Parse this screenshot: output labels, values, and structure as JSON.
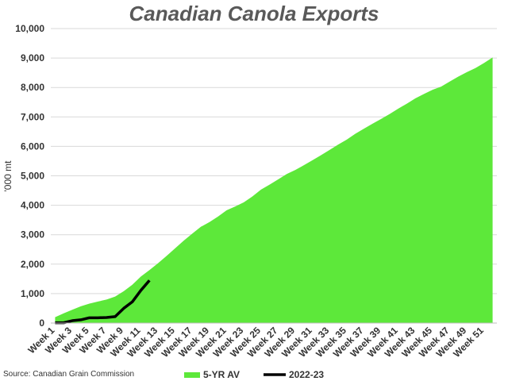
{
  "chart_data": {
    "type": "area-line",
    "title": "Canadian Canola Exports",
    "y_label": "'000 mt",
    "source": "Source: Canadian Grain Commission",
    "categories": [
      "Week 1",
      null,
      "Week 3",
      null,
      "Week 5",
      null,
      "Week 7",
      null,
      "Week 9",
      null,
      "Week 11",
      null,
      "Week 13",
      null,
      "Week 15",
      null,
      "Week 17",
      null,
      "Week 19",
      null,
      "Week 21",
      null,
      "Week 23",
      null,
      "Week 25",
      null,
      "Week 27",
      null,
      "Week 29",
      null,
      "Week 31",
      null,
      "Week 33",
      null,
      "Week 35",
      null,
      "Week 37",
      null,
      "Week 39",
      null,
      "Week 41",
      null,
      "Week 43",
      null,
      "Week 45",
      null,
      "Week 47",
      null,
      "Week 49",
      null,
      "Week 51",
      null
    ],
    "series": [
      {
        "name": "5-YR AV",
        "kind": "area",
        "color": "#5de83a",
        "values": [
          200,
          330,
          450,
          570,
          660,
          730,
          800,
          900,
          1080,
          1300,
          1580,
          1800,
          2030,
          2280,
          2540,
          2800,
          3040,
          3270,
          3430,
          3620,
          3830,
          3960,
          4100,
          4300,
          4530,
          4700,
          4880,
          5060,
          5200,
          5360,
          5530,
          5700,
          5880,
          6060,
          6230,
          6430,
          6600,
          6770,
          6930,
          7100,
          7280,
          7450,
          7630,
          7780,
          7920,
          8030,
          8200,
          8370,
          8520,
          8660,
          8830,
          9020
        ]
      },
      {
        "name": "2022-23",
        "kind": "line",
        "color": "#000000",
        "values": [
          10,
          10,
          80,
          110,
          180,
          180,
          190,
          220,
          500,
          720,
          1110,
          1450,
          null,
          null,
          null,
          null,
          null,
          null,
          null,
          null,
          null,
          null,
          null,
          null,
          null,
          null,
          null,
          null,
          null,
          null,
          null,
          null,
          null,
          null,
          null,
          null,
          null,
          null,
          null,
          null,
          null,
          null,
          null,
          null,
          null,
          null,
          null,
          null,
          null,
          null,
          null,
          null
        ]
      }
    ],
    "ylim": [
      0,
      10000
    ],
    "yticks": [
      0,
      {
        "value": 1000,
        "label": "1,000"
      },
      {
        "value": 2000,
        "label": "2,000"
      },
      {
        "value": 3000,
        "label": "3,000"
      },
      {
        "value": 4000,
        "label": "4,000"
      },
      {
        "value": 5000,
        "label": "5,000"
      },
      {
        "value": 6000,
        "label": "6,000"
      },
      {
        "value": 7000,
        "label": "7,000"
      },
      {
        "value": 8000,
        "label": "8,000"
      },
      {
        "value": 9000,
        "label": "9,000"
      },
      {
        "value": 10000,
        "label": "10,000"
      }
    ],
    "grid": true
  }
}
